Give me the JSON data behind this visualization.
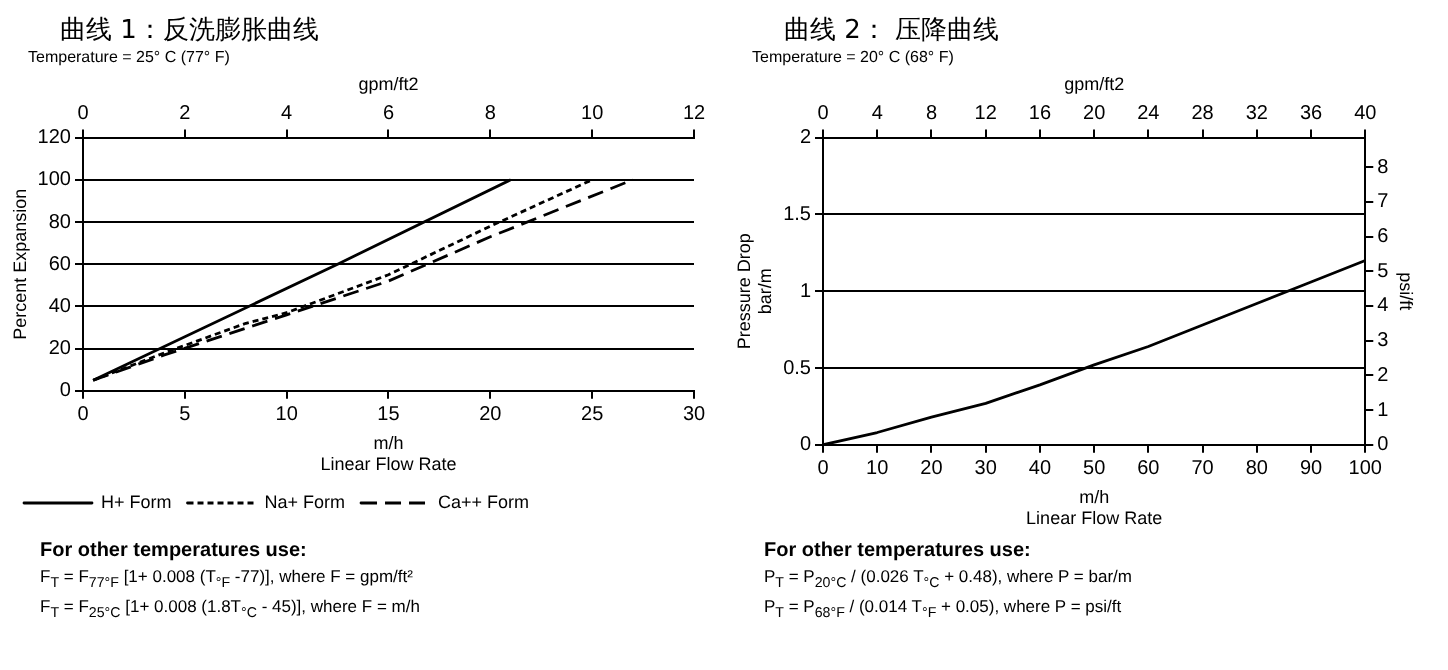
{
  "chart_data": [
    {
      "type": "line",
      "title": "曲线 1：反洗膨胀曲线",
      "xlabel": "m/h\nLinear Flow Rate",
      "x2label": "gpm/ft2",
      "ylabel": "Percent Expansion",
      "xlim": [
        0,
        30
      ],
      "xticks": [
        0,
        5,
        10,
        15,
        20,
        25,
        30
      ],
      "x2lim": [
        0,
        12
      ],
      "x2ticks": [
        0,
        2,
        4,
        6,
        8,
        10,
        12
      ],
      "ylim": [
        0,
        120
      ],
      "yticks": [
        0,
        20,
        40,
        60,
        80,
        100,
        120
      ],
      "grid": "y",
      "legend": "bottom left",
      "marker": "none",
      "series": [
        {
          "name": "H+ Form",
          "color": "#000000",
          "line_style": "solid",
          "x": [
            0.5,
            12.5,
            21
          ],
          "values": [
            5,
            60,
            100
          ]
        },
        {
          "name": "Na+ Form",
          "color": "#000000",
          "line_style": "dotted",
          "x": [
            0.5,
            4,
            8,
            10,
            15,
            20,
            25
          ],
          "values": [
            5,
            18,
            32,
            37,
            55,
            78,
            100
          ]
        },
        {
          "name": "Ca++ Form",
          "color": "#000000",
          "line_style": "dashed",
          "x": [
            0.5,
            4,
            10,
            15,
            20,
            27
          ],
          "values": [
            5,
            17,
            36,
            52,
            73,
            100
          ]
        }
      ],
      "annotations": [
        "Temperature = 25° C (77° F)",
        "For other temperatures use:",
        "F$_{T}$ = F$_{77°F}$ [1+ 0.008 (T$_{°F}$ -77)], where F = gpm/ft²",
        "F$_{T}$ = F$_{25°C}$ [1+ 0.008 (1.8T$_{°C}$ - 45)], where F = m/h"
      ]
    },
    {
      "type": "line",
      "title": "曲线 2： 压降曲线",
      "xlabel": "m/h\nLinear Flow Rate",
      "x2label": "gpm/ft2",
      "ylabel": "Pressure Drop\nbar/m",
      "y2label": "psi/ft",
      "xlim": [
        0,
        100
      ],
      "xticks": [
        0,
        10,
        20,
        30,
        40,
        50,
        60,
        70,
        80,
        90,
        100
      ],
      "x2lim": [
        0,
        40
      ],
      "x2ticks": [
        0,
        4,
        8,
        12,
        16,
        20,
        24,
        28,
        32,
        36,
        40
      ],
      "ylim": [
        0,
        2
      ],
      "yticks": [
        0,
        0.5,
        1,
        1.5,
        2
      ],
      "y2lim": [
        0,
        8.85
      ],
      "y2ticks": [
        0,
        1,
        2,
        3,
        4,
        5,
        6,
        7,
        8
      ],
      "grid": "y",
      "marker": "none",
      "x": [
        0,
        10,
        20,
        30,
        40,
        50,
        60,
        70,
        80,
        90,
        100
      ],
      "series": [
        {
          "color": "#000000",
          "values": [
            0,
            0.08,
            0.18,
            0.27,
            0.39,
            0.52,
            0.64,
            0.78,
            0.92,
            1.06,
            1.2
          ]
        }
      ],
      "annotations": [
        "Temperature = 20° C (68° F)",
        "For other temperatures use:",
        "P$_{T}$ = P$_{20°C}$ / (0.026 T$_{°C}$ + 0.48), where P = bar/m",
        "P$_{T}$ = P$_{68°F}$ / (0.014 T$_{°F}$ + 0.05), where P = psi/ft"
      ]
    }
  ]
}
